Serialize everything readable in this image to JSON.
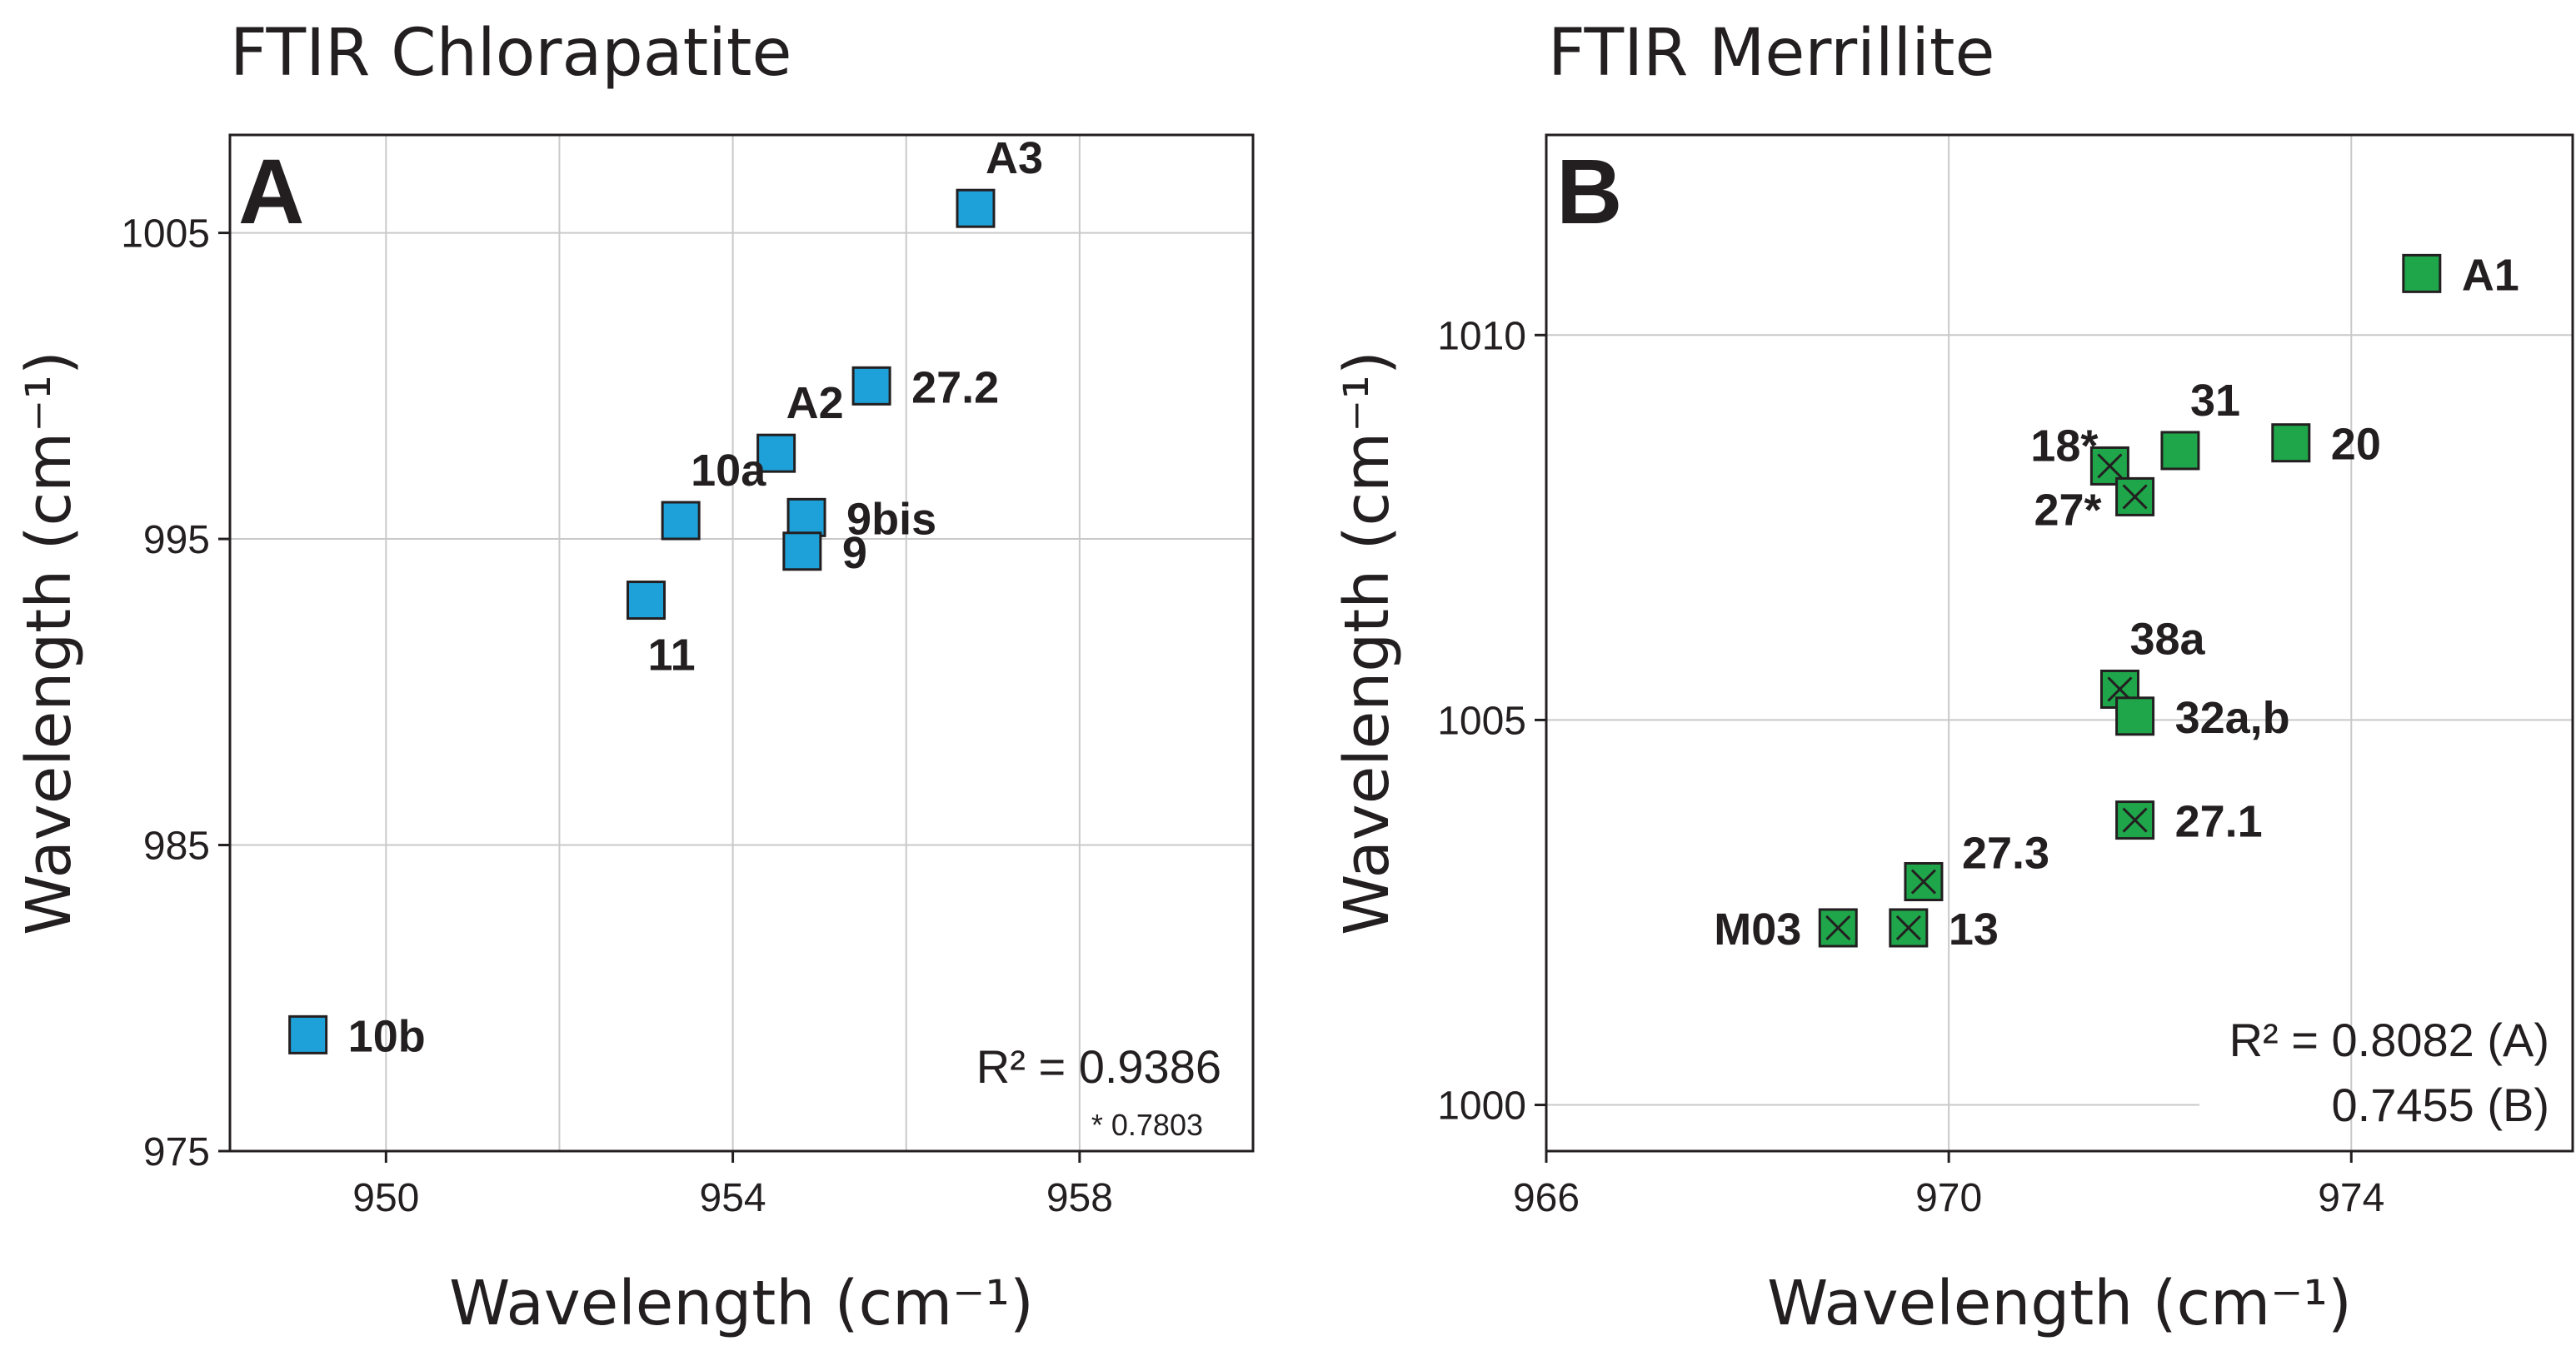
{
  "chart_data": [
    {
      "type": "scatter",
      "panel": "A",
      "title": "FTIR Chlorapatite",
      "xlabel": "Wavelength (cm⁻¹)",
      "ylabel": "Wavelength (cm⁻¹)",
      "xlim": [
        948.2,
        960.0
      ],
      "ylim": [
        975,
        1008.2
      ],
      "xticks": [
        950,
        954,
        958
      ],
      "yticks": [
        975,
        985,
        995,
        1005
      ],
      "x_gridlines": [
        950,
        952,
        954,
        956,
        958
      ],
      "y_gridlines": [
        985,
        995,
        1005
      ],
      "marker_color": "#1ea0d8",
      "points": [
        {
          "label": "A3",
          "x": 956.8,
          "y": 1005.8,
          "label_pos": "above"
        },
        {
          "label": "27.2",
          "x": 955.6,
          "y": 1000.0,
          "label_pos": "right"
        },
        {
          "label": "A2",
          "x": 954.5,
          "y": 997.8,
          "label_pos": "above"
        },
        {
          "label": "10a",
          "x": 953.4,
          "y": 995.6,
          "label_pos": "above"
        },
        {
          "label": "9bis",
          "x": 954.85,
          "y": 995.7,
          "label_pos": "right"
        },
        {
          "label": "9",
          "x": 954.8,
          "y": 994.6,
          "label_pos": "right"
        },
        {
          "label": "11",
          "x": 953.0,
          "y": 993.0,
          "label_pos": "below"
        },
        {
          "label": "10b",
          "x": 949.1,
          "y": 978.8,
          "label_pos": "right"
        }
      ],
      "annotations": {
        "r2": "R² = 0.9386",
        "r2_note": "* 0.7803"
      }
    },
    {
      "type": "scatter",
      "panel": "B",
      "title": "FTIR Merrillite",
      "xlabel": "Wavelength (cm⁻¹)",
      "ylabel": "Wavelength (cm⁻¹)",
      "xlim": [
        966,
        976.2
      ],
      "ylim": [
        999.4,
        1012.6
      ],
      "xticks": [
        966,
        970,
        974
      ],
      "yticks": [
        1000,
        1005,
        1010
      ],
      "x_gridlines": [
        970,
        974
      ],
      "y_gridlines": [
        1000,
        1005,
        1010
      ],
      "marker_color": "#1fa64a",
      "points": [
        {
          "label": "A1",
          "x": 974.7,
          "y": 1010.8,
          "crossed": false,
          "label_pos": "right"
        },
        {
          "label": "20",
          "x": 973.4,
          "y": 1008.6,
          "crossed": false,
          "label_pos": "right"
        },
        {
          "label": "31",
          "x": 972.3,
          "y": 1008.5,
          "crossed": false,
          "label_pos": "above"
        },
        {
          "label": "18*",
          "x": 971.6,
          "y": 1008.3,
          "crossed": true,
          "label_pos": "left-up"
        },
        {
          "label": "27*",
          "x": 971.85,
          "y": 1007.9,
          "crossed": true,
          "label_pos": "left-down"
        },
        {
          "label": "38a",
          "x": 971.7,
          "y": 1005.4,
          "crossed": true,
          "label_pos": "above"
        },
        {
          "label": "32a,b",
          "x": 971.85,
          "y": 1005.05,
          "crossed": false,
          "label_pos": "right"
        },
        {
          "label": "27.1",
          "x": 971.85,
          "y": 1003.7,
          "crossed": true,
          "label_pos": "right"
        },
        {
          "label": "27.3",
          "x": 969.75,
          "y": 1002.9,
          "crossed": true,
          "label_pos": "above-right"
        },
        {
          "label": "13",
          "x": 969.6,
          "y": 1002.3,
          "crossed": true,
          "label_pos": "right"
        },
        {
          "label": "M03",
          "x": 968.9,
          "y": 1002.3,
          "crossed": true,
          "label_pos": "left"
        }
      ],
      "annotations": {
        "r2": "R² = 0.8082 (A)",
        "r2_b": "0.7455 (B)"
      }
    }
  ]
}
